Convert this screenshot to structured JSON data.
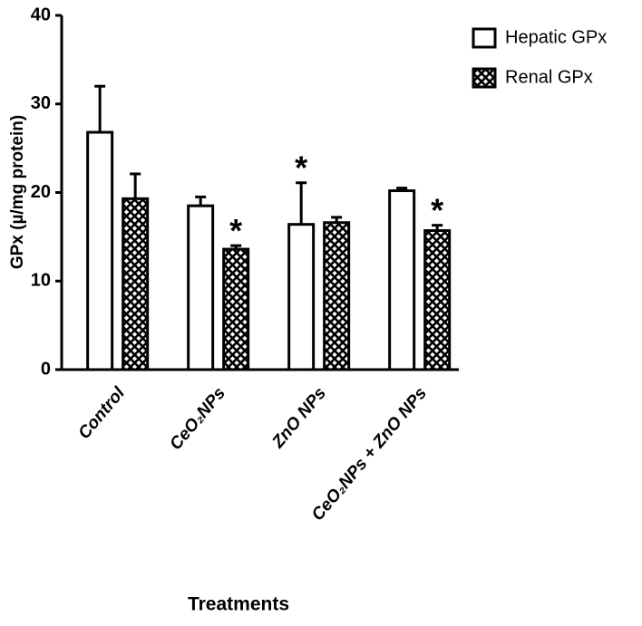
{
  "chart_data": {
    "type": "bar",
    "ylabel": "GPx (µ/mg protein)",
    "xlabel": "Treatments",
    "categories": [
      "Control",
      "CeO₂NPs",
      "ZnO NPs",
      "CeO₂NPs + ZnO NPs"
    ],
    "series": [
      {
        "name": "Hepatic GPx",
        "color": "#ffffff",
        "hatch": false,
        "values": [
          26.8,
          18.5,
          16.4,
          20.2
        ],
        "errors": [
          5.2,
          1.0,
          4.7,
          0.3
        ],
        "significance": [
          null,
          null,
          "*",
          null
        ]
      },
      {
        "name": "Renal GPx",
        "color": "#ffffff",
        "hatch": true,
        "values": [
          19.3,
          13.6,
          16.6,
          15.7
        ],
        "errors": [
          2.8,
          0.4,
          0.6,
          0.6
        ],
        "significance": [
          null,
          "*",
          null,
          "*"
        ]
      }
    ],
    "ylim": [
      0,
      40
    ],
    "yticks": [
      0,
      10,
      20,
      30,
      40
    ],
    "legend": "upper right"
  }
}
